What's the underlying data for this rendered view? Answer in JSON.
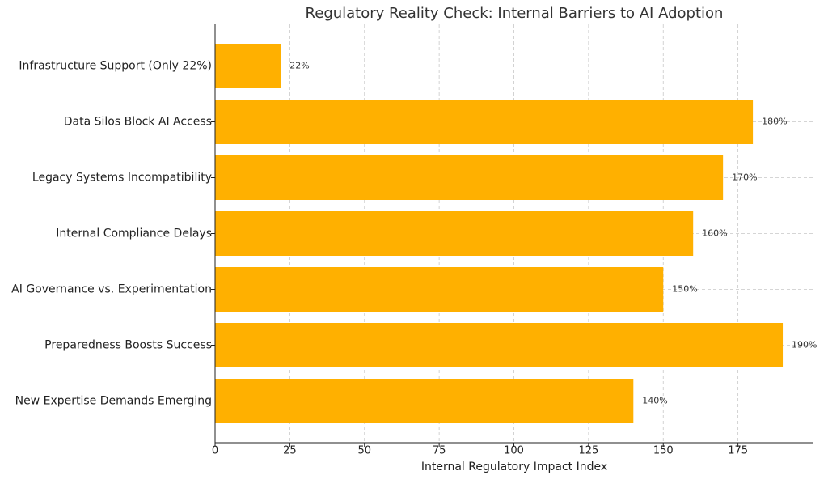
{
  "chart_data": {
    "type": "barh",
    "title": "Regulatory Reality Check: Internal Barriers to AI Adoption",
    "xlabel": "Internal Regulatory Impact Index",
    "categories": [
      "Infrastructure Support (Only 22%)",
      "Data Silos Block AI Access",
      "Legacy Systems Incompatibility",
      "Internal Compliance Delays",
      "AI Governance vs. Experimentation",
      "Preparedness Boosts Success",
      "New Expertise Demands Emerging"
    ],
    "values": [
      22,
      180,
      170,
      160,
      150,
      190,
      140
    ],
    "value_labels": [
      "22%",
      "180%",
      "170%",
      "160%",
      "150%",
      "190%",
      "140%"
    ],
    "color": "#ffb000",
    "xlim": [
      0,
      200
    ],
    "xticks": [
      0,
      25,
      50,
      75,
      100,
      125,
      150,
      175
    ],
    "grid": true
  }
}
